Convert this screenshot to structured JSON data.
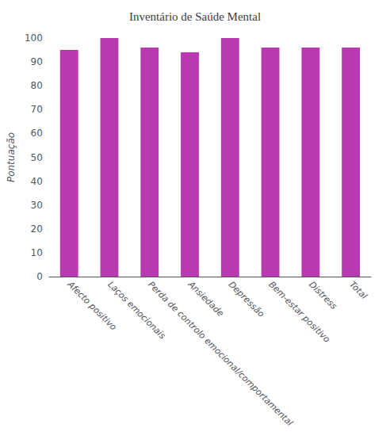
{
  "chart_data": {
    "type": "bar",
    "title": "Inventário de Saúde Mental",
    "ylabel": "Pontuação",
    "categories": [
      "Afecto positivo",
      "Laços emocionais",
      "Perda de controlo emocional/comportamental",
      "Ansiedade",
      "Depressão",
      "Bem-estar positivo",
      "Distress",
      "Total"
    ],
    "values": [
      95,
      100,
      96,
      94,
      100,
      96,
      96,
      96
    ],
    "color": "#b83ab0",
    "ylim": [
      0,
      100
    ],
    "yticks": [
      0,
      10,
      20,
      30,
      40,
      50,
      60,
      70,
      80,
      90,
      100
    ],
    "grid": false
  }
}
